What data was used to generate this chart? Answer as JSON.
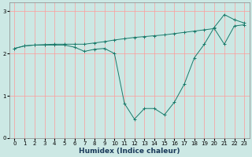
{
  "xlabel": "Humidex (Indice chaleur)",
  "bg_color": "#cce8e4",
  "grid_color": "#ff9999",
  "line_color": "#1a7a6a",
  "x_values": [
    0,
    1,
    2,
    3,
    4,
    5,
    6,
    7,
    8,
    9,
    10,
    11,
    12,
    13,
    14,
    15,
    16,
    17,
    18,
    19,
    20,
    21,
    22,
    23
  ],
  "y_series1": [
    2.12,
    2.18,
    2.2,
    2.2,
    2.2,
    2.2,
    2.15,
    2.05,
    2.1,
    2.12,
    2.0,
    0.82,
    0.45,
    0.7,
    0.7,
    0.55,
    0.85,
    1.28,
    1.9,
    2.22,
    2.62,
    2.92,
    2.8,
    2.72
  ],
  "y_series2": [
    2.12,
    2.18,
    2.2,
    2.21,
    2.22,
    2.22,
    2.22,
    2.22,
    2.25,
    2.28,
    2.32,
    2.35,
    2.38,
    2.4,
    2.42,
    2.44,
    2.47,
    2.5,
    2.53,
    2.56,
    2.59,
    2.22,
    2.65,
    2.68
  ],
  "ylim": [
    0,
    3.2
  ],
  "xlim": [
    -0.5,
    23.5
  ],
  "yticks": [
    0,
    1,
    2,
    3
  ],
  "xticks": [
    0,
    1,
    2,
    3,
    4,
    5,
    6,
    7,
    8,
    9,
    10,
    11,
    12,
    13,
    14,
    15,
    16,
    17,
    18,
    19,
    20,
    21,
    22,
    23
  ],
  "tick_fontsize": 5.0,
  "xlabel_fontsize": 6.5
}
